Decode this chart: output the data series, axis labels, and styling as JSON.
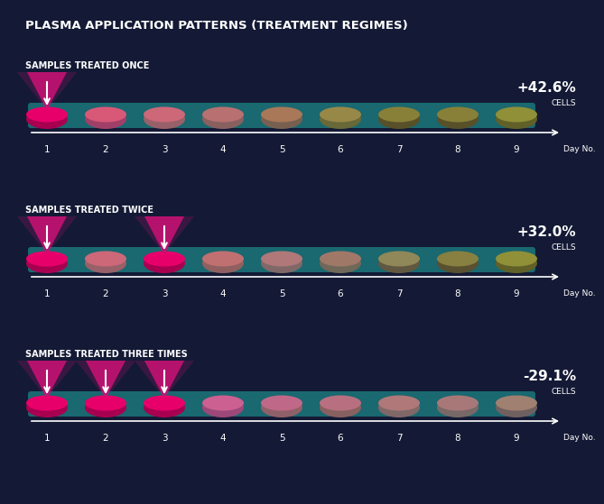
{
  "title": "PLASMA APPLICATION PATTERNS (TREATMENT REGIMES)",
  "bg_color": "#141a35",
  "bar_color": "#1a6870",
  "text_color": "#ffffff",
  "days": [
    1,
    2,
    3,
    4,
    5,
    6,
    7,
    8,
    9
  ],
  "regimes": [
    {
      "label": "SAMPLES TREATED ONCE",
      "treatment_days": [
        1
      ],
      "result": "+42.6%",
      "cell_colors_top": [
        "#e8006a",
        "#d85878",
        "#cc6878",
        "#b87070",
        "#a87858",
        "#988848",
        "#888038",
        "#888038",
        "#909038"
      ],
      "cell_colors_side": [
        "#a80050",
        "#a04068",
        "#986068",
        "#886060",
        "#786050",
        "#686838",
        "#585028",
        "#585028",
        "#606028"
      ]
    },
    {
      "label": "SAMPLES TREATED TWICE",
      "treatment_days": [
        1,
        3
      ],
      "result": "+32.0%",
      "cell_colors_top": [
        "#e8006a",
        "#cc6878",
        "#e8006a",
        "#c07070",
        "#b07878",
        "#a07868",
        "#908858",
        "#888040",
        "#909038"
      ],
      "cell_colors_side": [
        "#a80050",
        "#986068",
        "#a80050",
        "#906060",
        "#806868",
        "#706858",
        "#605840",
        "#585030",
        "#606028"
      ]
    },
    {
      "label": "SAMPLES TREATED THREE TIMES",
      "treatment_days": [
        1,
        2,
        3
      ],
      "result": "-29.1%",
      "cell_colors_top": [
        "#e8006a",
        "#e8006a",
        "#e8006a",
        "#cc6090",
        "#c06888",
        "#b87080",
        "#b07878",
        "#a87878",
        "#a08070"
      ],
      "cell_colors_side": [
        "#a80050",
        "#a80050",
        "#a80050",
        "#9c4878",
        "#906068",
        "#886060",
        "#806868",
        "#786868",
        "#706060"
      ]
    }
  ]
}
